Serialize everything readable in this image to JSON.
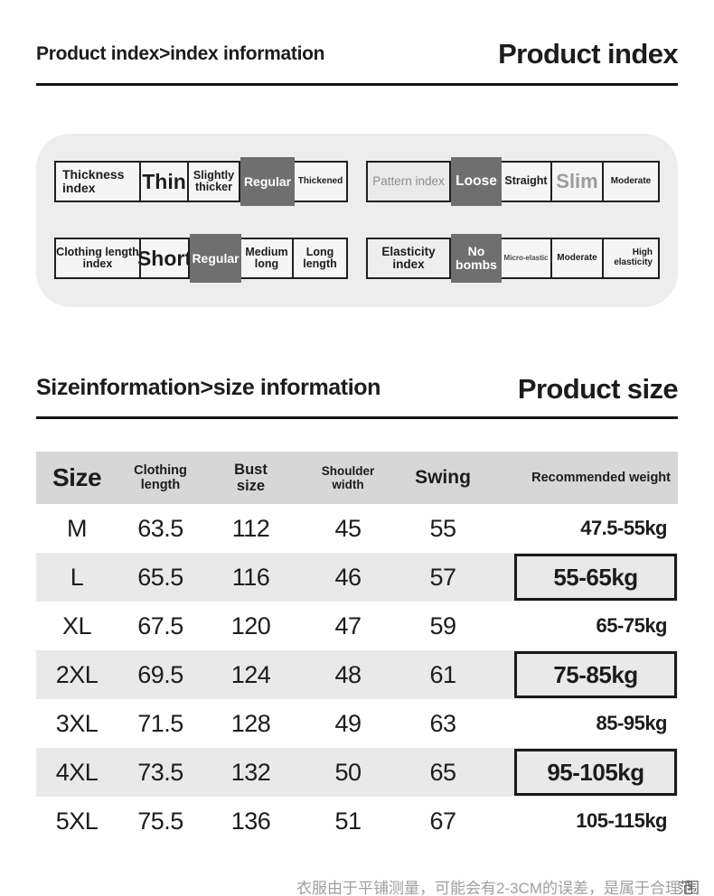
{
  "section_index": {
    "breadcrumb": "Product index>index information",
    "title": "Product index"
  },
  "index_panel": {
    "selected_color": "#6f6f6f",
    "row1": {
      "left": {
        "label": "Thickness index",
        "opt1": "Thin",
        "opt2": "Slightly thicker",
        "opt3": "Regular",
        "opt4": "Thickened",
        "selected": "Regular"
      },
      "right": {
        "label": "Pattern index",
        "opt1": "Loose",
        "opt2": "Straight",
        "opt3": "Slim",
        "opt4": "Moderate",
        "selected": "Loose"
      }
    },
    "row2": {
      "left": {
        "label": "Clothing length index",
        "opt1": "Short",
        "opt2": "Regular",
        "opt3": "Medium long",
        "opt4": "Long length",
        "selected": "Regular"
      },
      "right": {
        "label": "Elasticity index",
        "opt1": "No bombs",
        "opt2": "Micro-elastic",
        "opt3": "Moderate",
        "opt4": "High elasticity",
        "selected": "No bombs"
      }
    }
  },
  "section_size": {
    "breadcrumb": "Sizeinformation>size information",
    "title": "Product size"
  },
  "size_table": {
    "headers": {
      "size": "Size",
      "clothing_length": "Clothing length",
      "bust": "Bust size",
      "shoulder": "Shoulder width",
      "swing": "Swing",
      "weight": "Recommended weight"
    },
    "rows": [
      {
        "size": "M",
        "clothing_length": "63.5",
        "bust": "112",
        "shoulder": "45",
        "swing": "55",
        "weight": "47.5-55kg",
        "boxed": false
      },
      {
        "size": "L",
        "clothing_length": "65.5",
        "bust": "116",
        "shoulder": "46",
        "swing": "57",
        "weight": "55-65kg",
        "boxed": true
      },
      {
        "size": "XL",
        "clothing_length": "67.5",
        "bust": "120",
        "shoulder": "47",
        "swing": "59",
        "weight": "65-75kg",
        "boxed": false
      },
      {
        "size": "2XL",
        "clothing_length": "69.5",
        "bust": "124",
        "shoulder": "48",
        "swing": "61",
        "weight": "75-85kg",
        "boxed": true
      },
      {
        "size": "3XL",
        "clothing_length": "71.5",
        "bust": "128",
        "shoulder": "49",
        "swing": "63",
        "weight": "85-95kg",
        "boxed": false
      },
      {
        "size": "4XL",
        "clothing_length": "73.5",
        "bust": "132",
        "shoulder": "50",
        "swing": "65",
        "weight": "95-105kg",
        "boxed": true
      },
      {
        "size": "5XL",
        "clothing_length": "75.5",
        "bust": "136",
        "shoulder": "51",
        "swing": "67",
        "weight": "105-115kg",
        "boxed": false
      }
    ]
  },
  "footnote": {
    "text": "衣服由于平铺测量，可能会有2-3CM的误差，是属于合理",
    "tail": "范围"
  }
}
